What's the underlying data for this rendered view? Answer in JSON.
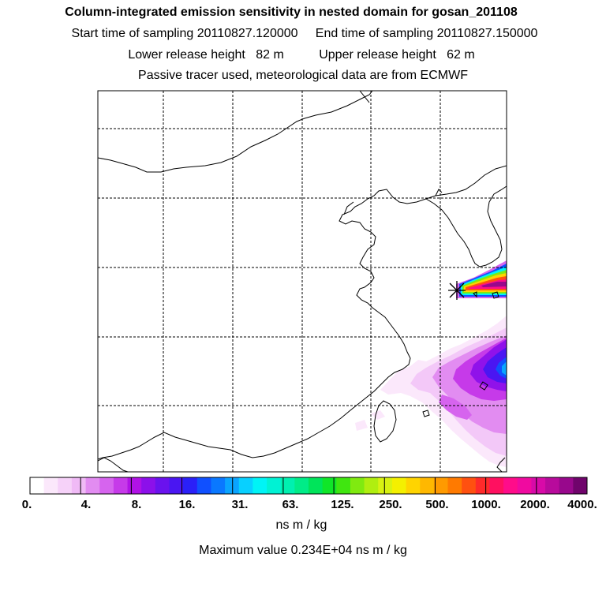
{
  "header": {
    "title": "Column-integrated emission sensitivity in nested domain for gosan_201108",
    "sampling": "Start time of sampling 20110827.120000     End time of sampling 20110827.150000",
    "release": "Lower release height   82 m          Upper release height   62 m",
    "tracer": "Passive tracer used, meteorological data are from ECMWF"
  },
  "colorbar": {
    "tick_labels": [
      "0.",
      "4.",
      "8.",
      "16.",
      "31.",
      "63.",
      "125.",
      "250.",
      "500.",
      "1000.",
      "2000.",
      "4000."
    ],
    "colors": [
      "#ffffff",
      "#fbe8fb",
      "#f6d2f9",
      "#f0baf6",
      "#e28cf1",
      "#d664ee",
      "#c63ae9",
      "#b012e6",
      "#8c10ea",
      "#6a12ee",
      "#4a16f2",
      "#2a20f8",
      "#1050ff",
      "#0a78ff",
      "#0aa4ff",
      "#08d0ff",
      "#00f4f6",
      "#00f2d4",
      "#00f0b0",
      "#00ec88",
      "#00e45a",
      "#10e628",
      "#40e610",
      "#80ea10",
      "#b0ee10",
      "#d8f212",
      "#f4f000",
      "#ffd400",
      "#ffb800",
      "#ff9a00",
      "#ff7a00",
      "#ff5010",
      "#ff2a2a",
      "#ff1060",
      "#ff0c8a",
      "#f00aa0",
      "#d80aa8",
      "#b80a9c",
      "#98088c",
      "#70046c"
    ],
    "units": "ns m / kg"
  },
  "map": {
    "grid": "dashed lat/lon lines",
    "marker": "release site asterisk"
  },
  "footer": {
    "max_value": "Maximum value  0.234E+04 ns m / kg"
  }
}
